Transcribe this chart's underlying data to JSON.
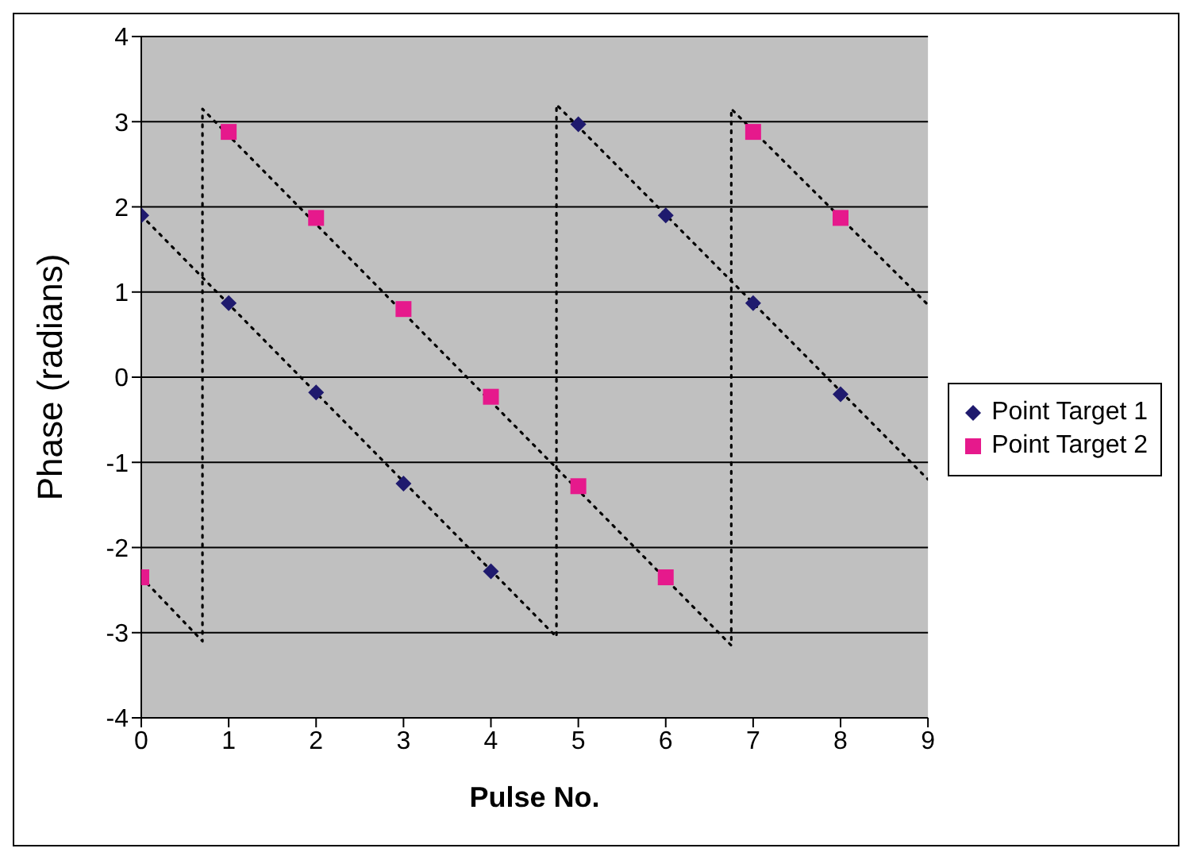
{
  "chart_data": {
    "type": "scatter",
    "xlabel": "Pulse No.",
    "ylabel": "Phase (radians)",
    "xlim": [
      0,
      9
    ],
    "xticks": [
      0,
      1,
      2,
      3,
      4,
      5,
      6,
      7,
      8,
      9
    ],
    "ylim": [
      -4,
      4
    ],
    "yticks": [
      -4,
      -3,
      -2,
      -1,
      0,
      1,
      2,
      3,
      4
    ],
    "grid": "y",
    "legend": "right",
    "x": [
      0,
      1,
      2,
      3,
      4,
      5,
      6,
      7,
      8
    ],
    "series": [
      {
        "name": "Point Target 1",
        "color": "#1f1a6e",
        "marker": "diamond",
        "values": [
          1.9,
          0.87,
          -0.18,
          -1.25,
          -2.28,
          2.97,
          1.9,
          0.87,
          -0.2
        ]
      },
      {
        "name": "Point Target 2",
        "color": "#e6198c",
        "marker": "square",
        "values": [
          -2.35,
          2.88,
          1.87,
          0.8,
          -0.23,
          -1.28,
          -2.35,
          2.88,
          1.87
        ]
      },
      {
        "type": "line",
        "color": "#000000",
        "line_style": "dotted",
        "marker": "none",
        "x": [
          0,
          4.75,
          4.75,
          9
        ],
        "values": [
          1.9,
          -3.05,
          3.2,
          -1.2
        ]
      },
      {
        "type": "line",
        "color": "#000000",
        "line_style": "dotted",
        "marker": "none",
        "x": [
          0,
          0.7,
          0.7,
          6.75,
          6.75,
          9
        ],
        "values": [
          -2.35,
          -3.1,
          3.15,
          -3.15,
          3.15,
          0.85
        ]
      }
    ]
  }
}
